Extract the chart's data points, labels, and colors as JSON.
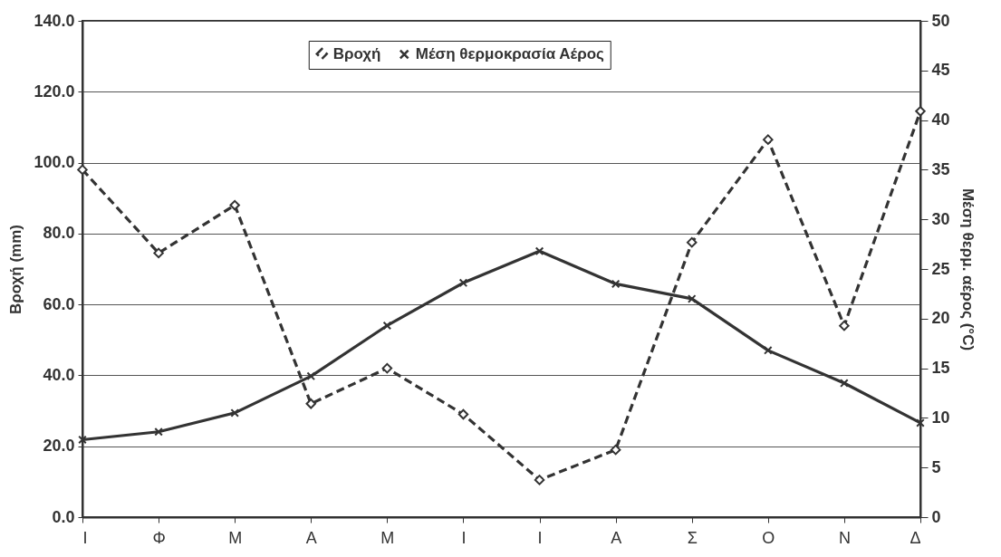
{
  "chart_data": {
    "type": "line",
    "ylabel": "Βροχή (mm)",
    "y2label": "Μέση θερμ. αέρος (°C)",
    "categories": [
      "Ι",
      "Φ",
      "Μ",
      "Α",
      "Μ",
      "Ι",
      "Ι",
      "Α",
      "Σ",
      "Ο",
      "Ν",
      "Δ"
    ],
    "series": [
      {
        "name": "Βροχή",
        "color": "#333333",
        "marker": "diamond",
        "line_style": "dashed",
        "values": [
          98,
          74.5,
          88,
          32,
          42,
          29,
          10.5,
          19,
          77.5,
          106.5,
          54,
          114.5
        ]
      },
      {
        "name": "Μέση θερμοκρασία Αέρος",
        "color": "#333333",
        "marker": "cross",
        "line_style": "solid",
        "axis": "y2",
        "values": [
          7.8,
          8.6,
          10.5,
          14.2,
          19.3,
          23.6,
          26.8,
          23.5,
          22,
          16.8,
          13.5,
          9.5
        ]
      }
    ],
    "ylim": [
      0,
      140
    ],
    "yticks": [
      {
        "value": 0,
        "label": "0.0"
      },
      {
        "value": 20,
        "label": "20.0"
      },
      {
        "value": 40,
        "label": "40.0"
      },
      {
        "value": 60,
        "label": "60.0"
      },
      {
        "value": 80,
        "label": "80.0"
      },
      {
        "value": 100,
        "label": "100.0"
      },
      {
        "value": 120,
        "label": "120.0"
      },
      {
        "value": 140,
        "label": "140.0"
      }
    ],
    "y2lim": [
      0,
      50
    ],
    "y2ticks": [
      0,
      5,
      10,
      15,
      20,
      25,
      30,
      35,
      40,
      45,
      50
    ],
    "grid": "y",
    "legend": "top"
  }
}
